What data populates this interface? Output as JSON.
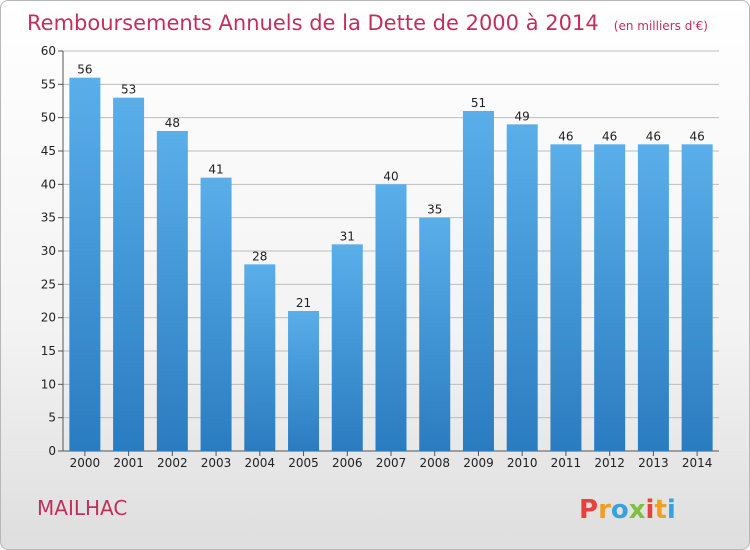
{
  "chart_data": {
    "type": "bar",
    "title": "Remboursements Annuels de la Dette de 2000 à 2014",
    "subtitle": "(en milliers d'€)",
    "categories": [
      "2000",
      "2001",
      "2002",
      "2003",
      "2004",
      "2005",
      "2006",
      "2007",
      "2008",
      "2009",
      "2010",
      "2011",
      "2012",
      "2013",
      "2014"
    ],
    "values": [
      56,
      53,
      48,
      41,
      28,
      21,
      31,
      40,
      35,
      51,
      49,
      46,
      46,
      46,
      46
    ],
    "xlabel": "",
    "ylabel": "",
    "ylim": [
      0,
      60
    ],
    "yticks": [
      0,
      5,
      10,
      15,
      20,
      25,
      30,
      35,
      40,
      45,
      50,
      55,
      60
    ],
    "grid": true,
    "legend": "none",
    "colors": {
      "bar_light": "#5aaee9",
      "bar_dark": "#2a7cc0",
      "title": "#c0305a"
    }
  },
  "footer": {
    "commune": "MAILHAC",
    "logo_letters": [
      "P",
      "r",
      "o",
      "x",
      "i",
      "t",
      "i"
    ],
    "logo_colors": [
      "#e8403a",
      "#f0a020",
      "#3aa0e0",
      "#80c040",
      "#e8403a",
      "#f0a020",
      "#3aa0e0"
    ]
  }
}
